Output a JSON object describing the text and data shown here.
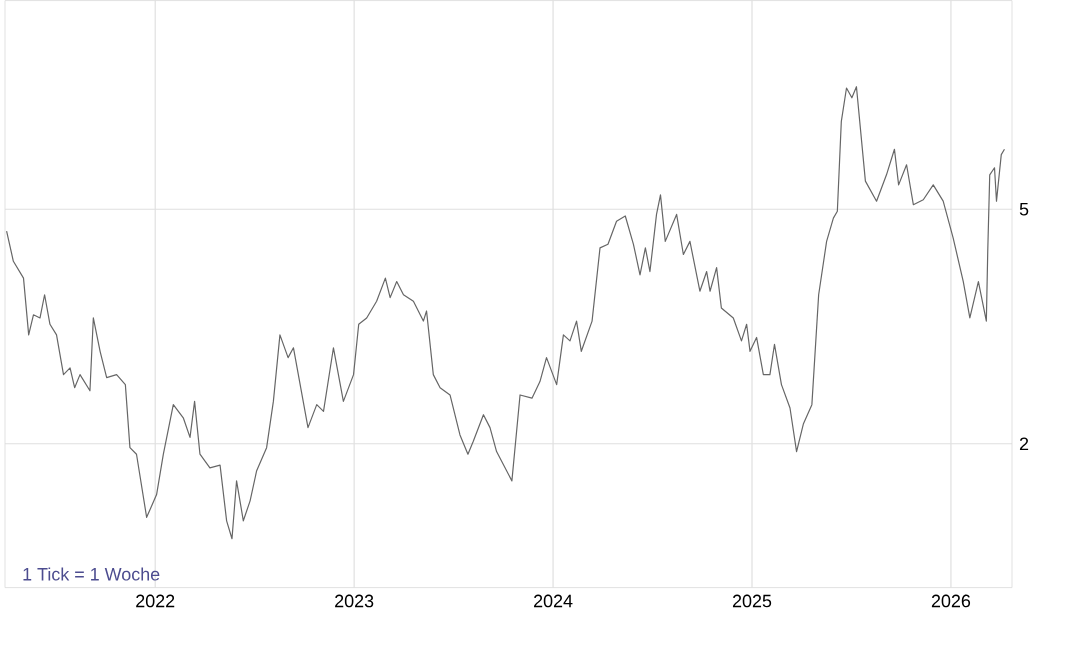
{
  "chart_data": {
    "type": "line",
    "color": "#666666",
    "x": [
      2021.253,
      2021.287,
      2021.338,
      2021.364,
      2021.388,
      2021.421,
      2021.444,
      2021.471,
      2021.504,
      2021.539,
      2021.572,
      2021.595,
      2021.622,
      2021.672,
      2021.689,
      2021.723,
      2021.756,
      2021.806,
      2021.85,
      2021.873,
      2021.906,
      2021.957,
      2022.007,
      2022.041,
      2022.091,
      2022.142,
      2022.175,
      2022.198,
      2022.225,
      2022.275,
      2022.326,
      2022.359,
      2022.386,
      2022.409,
      2022.443,
      2022.477,
      2022.51,
      2022.56,
      2022.594,
      2022.627,
      2022.668,
      2022.695,
      2022.768,
      2022.812,
      2022.846,
      2022.896,
      2022.946,
      2022.997,
      2023.023,
      2023.063,
      2023.113,
      2023.157,
      2023.181,
      2023.214,
      2023.248,
      2023.298,
      2023.348,
      2023.364,
      2023.398,
      2023.432,
      2023.482,
      2023.532,
      2023.572,
      2023.599,
      2023.65,
      2023.683,
      2023.716,
      2023.793,
      2023.834,
      2023.894,
      2023.934,
      2023.967,
      2024.018,
      2024.052,
      2024.085,
      2024.118,
      2024.142,
      2024.196,
      2024.236,
      2024.276,
      2024.319,
      2024.363,
      2024.404,
      2024.437,
      2024.464,
      2024.487,
      2024.52,
      2024.54,
      2024.564,
      2024.621,
      2024.655,
      2024.688,
      2024.738,
      2024.772,
      2024.789,
      2024.822,
      2024.846,
      2024.906,
      2024.947,
      2024.973,
      2024.99,
      2025.023,
      2025.057,
      2025.09,
      2025.113,
      2025.148,
      2025.191,
      2025.224,
      2025.258,
      2025.301,
      2025.335,
      2025.375,
      2025.409,
      2025.429,
      2025.449,
      2025.475,
      2025.502,
      2025.525,
      2025.57,
      2025.626,
      2025.676,
      2025.716,
      2025.737,
      2025.777,
      2025.811,
      2025.861,
      2025.911,
      2025.961,
      2026.011,
      2026.062,
      2026.095,
      2026.138,
      2026.178,
      2026.185,
      2026.195,
      2026.219,
      2026.229,
      2026.253,
      2026.269
    ],
    "values": [
      4.59,
      4.08,
      3.82,
      3.06,
      3.31,
      3.27,
      3.58,
      3.19,
      3.06,
      2.62,
      2.69,
      2.49,
      2.62,
      2.46,
      3.27,
      2.87,
      2.59,
      2.62,
      2.52,
      1.97,
      1.92,
      1.5,
      1.64,
      1.92,
      2.33,
      2.21,
      2.05,
      2.36,
      1.92,
      1.82,
      1.84,
      1.48,
      1.38,
      1.73,
      1.48,
      1.6,
      1.8,
      1.97,
      2.36,
      3.06,
      2.8,
      2.91,
      2.13,
      2.33,
      2.27,
      2.91,
      2.36,
      2.62,
      3.19,
      3.27,
      3.49,
      3.82,
      3.54,
      3.77,
      3.58,
      3.49,
      3.23,
      3.36,
      2.62,
      2.49,
      2.42,
      2.07,
      1.92,
      2.02,
      2.24,
      2.13,
      1.94,
      1.73,
      2.42,
      2.39,
      2.55,
      2.8,
      2.52,
      3.06,
      2.99,
      3.23,
      2.87,
      3.23,
      4.3,
      4.36,
      4.77,
      4.87,
      4.36,
      3.87,
      4.3,
      3.92,
      4.9,
      5.29,
      4.41,
      4.9,
      4.19,
      4.41,
      3.63,
      3.92,
      3.63,
      3.98,
      3.4,
      3.27,
      2.99,
      3.19,
      2.87,
      3.03,
      2.62,
      2.62,
      2.95,
      2.52,
      2.3,
      1.94,
      2.16,
      2.33,
      3.58,
      4.41,
      4.83,
      4.96,
      7.05,
      8.03,
      7.73,
      8.07,
      5.58,
      5.16,
      5.72,
      6.32,
      5.5,
      5.95,
      5.09,
      5.19,
      5.5,
      5.16,
      4.47,
      3.77,
      3.27,
      3.77,
      3.23,
      4.24,
      5.72,
      5.88,
      5.16,
      6.19,
      6.32
    ],
    "xlim": [
      2021.245,
      2026.307
    ],
    "ylim": [
      1.14,
      11.3
    ],
    "xticks": [
      2022,
      2023,
      2024,
      2025,
      2026
    ],
    "yticks": [
      2,
      5
    ],
    "log": "y",
    "grid": true,
    "annotations": [
      "1 Tick = 1 Woche"
    ]
  }
}
